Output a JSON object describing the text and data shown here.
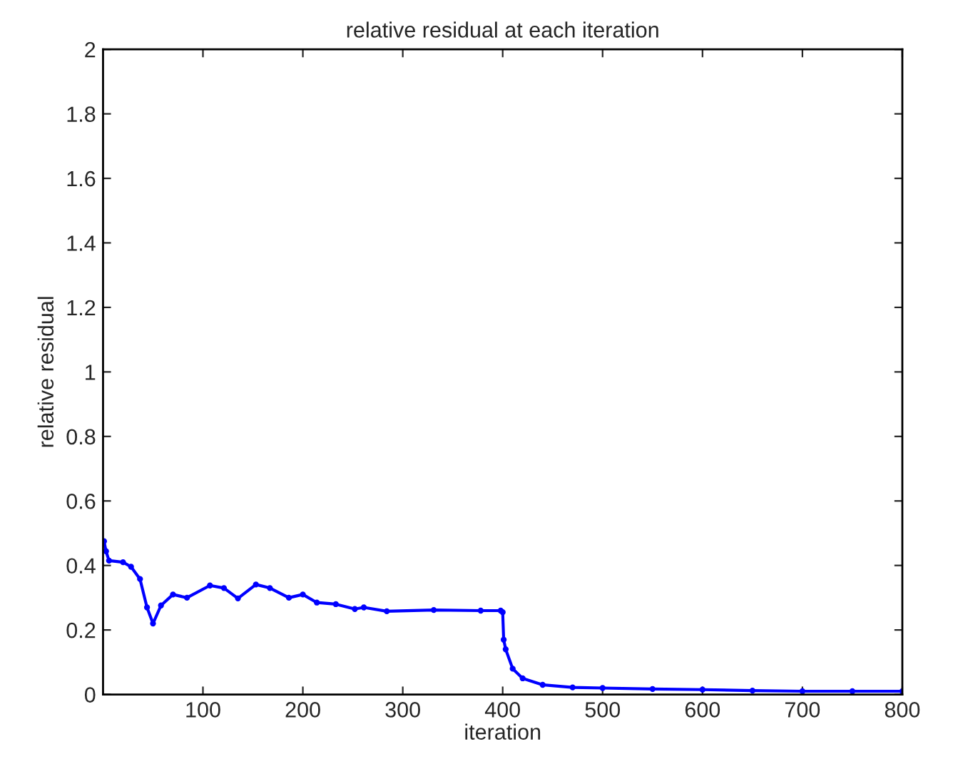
{
  "chart_data": {
    "type": "line",
    "title": "relative residual at each iteration",
    "xlabel": "iteration",
    "ylabel": "relative residual",
    "xlim": [
      0,
      800
    ],
    "ylim": [
      0,
      2
    ],
    "xticks": [
      100,
      200,
      300,
      400,
      500,
      600,
      700,
      800
    ],
    "yticks": [
      0,
      0.2,
      0.4,
      0.6,
      0.8,
      1,
      1.2,
      1.4,
      1.6,
      1.8,
      2
    ],
    "grid": false,
    "marker": "circle",
    "line_style": "solid",
    "series": [
      {
        "color": "#0000ff",
        "x": [
          1,
          3,
          6,
          20,
          28,
          37,
          44,
          50,
          58,
          70,
          84,
          107,
          121,
          135,
          153,
          167,
          186,
          200,
          214,
          233,
          252,
          261,
          284,
          331,
          378,
          398,
          400,
          401,
          403,
          410,
          420,
          440,
          470,
          500,
          550,
          600,
          650,
          700,
          750,
          800
        ],
        "values": [
          0.475,
          0.444,
          0.415,
          0.41,
          0.396,
          0.358,
          0.27,
          0.22,
          0.276,
          0.31,
          0.3,
          0.338,
          0.33,
          0.298,
          0.341,
          0.33,
          0.3,
          0.31,
          0.285,
          0.28,
          0.265,
          0.27,
          0.258,
          0.262,
          0.26,
          0.26,
          0.255,
          0.17,
          0.14,
          0.08,
          0.05,
          0.03,
          0.022,
          0.02,
          0.017,
          0.015,
          0.012,
          0.01,
          0.01,
          0.01
        ]
      }
    ]
  }
}
